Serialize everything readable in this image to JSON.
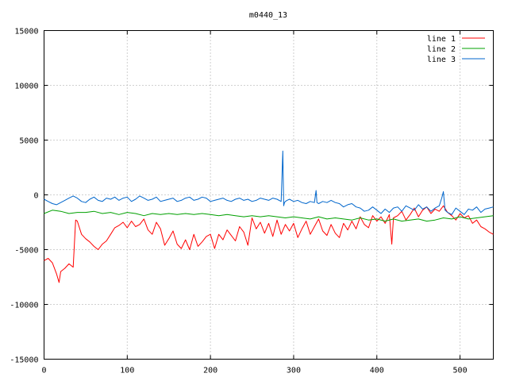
{
  "chart_data": {
    "type": "line",
    "title": "m0440_13",
    "xlabel": "",
    "ylabel": "",
    "xlim": [
      0,
      540
    ],
    "ylim": [
      -15000,
      15000
    ],
    "x_ticks": [
      0,
      100,
      200,
      300,
      400,
      500
    ],
    "y_ticks": [
      -15000,
      -10000,
      -5000,
      0,
      5000,
      10000,
      15000
    ],
    "grid": true,
    "legend_position": "top-right",
    "series": [
      {
        "name": "line 1",
        "color": "#ff0000",
        "x": [
          0,
          5,
          10,
          15,
          18,
          20,
          25,
          30,
          35,
          38,
          40,
          45,
          50,
          55,
          60,
          65,
          70,
          75,
          80,
          85,
          90,
          95,
          100,
          105,
          110,
          115,
          120,
          125,
          130,
          135,
          140,
          145,
          150,
          155,
          160,
          165,
          170,
          175,
          180,
          185,
          190,
          195,
          200,
          205,
          210,
          215,
          220,
          225,
          230,
          235,
          240,
          245,
          250,
          255,
          260,
          265,
          270,
          275,
          280,
          285,
          290,
          295,
          300,
          305,
          310,
          315,
          320,
          325,
          330,
          335,
          340,
          345,
          350,
          355,
          360,
          365,
          370,
          375,
          380,
          385,
          390,
          395,
          400,
          405,
          410,
          415,
          418,
          420,
          425,
          430,
          435,
          440,
          445,
          450,
          455,
          460,
          465,
          470,
          475,
          480,
          485,
          490,
          495,
          500,
          505,
          510,
          515,
          520,
          525,
          530,
          535,
          540
        ],
        "y": [
          -6000,
          -5800,
          -6200,
          -7200,
          -8000,
          -7000,
          -6700,
          -6300,
          -6600,
          -2300,
          -2400,
          -3600,
          -4000,
          -4300,
          -4700,
          -5000,
          -4500,
          -4200,
          -3600,
          -3000,
          -2800,
          -2500,
          -3000,
          -2400,
          -2900,
          -2700,
          -2200,
          -3200,
          -3600,
          -2500,
          -3100,
          -4600,
          -4000,
          -3300,
          -4500,
          -4900,
          -4100,
          -5000,
          -3600,
          -4700,
          -4300,
          -3800,
          -3600,
          -4900,
          -3600,
          -4100,
          -3200,
          -3700,
          -4200,
          -2900,
          -3400,
          -4600,
          -2100,
          -3100,
          -2500,
          -3500,
          -2600,
          -3800,
          -2300,
          -3600,
          -2700,
          -3300,
          -2600,
          -3900,
          -3100,
          -2400,
          -3600,
          -2900,
          -2200,
          -3300,
          -3700,
          -2700,
          -3500,
          -3900,
          -2600,
          -3200,
          -2400,
          -3100,
          -2000,
          -2700,
          -3000,
          -1900,
          -2400,
          -2000,
          -2600,
          -1800,
          -4500,
          -2100,
          -1900,
          -1500,
          -2300,
          -1800,
          -1200,
          -2000,
          -1400,
          -1100,
          -1700,
          -1300,
          -1500,
          -1000,
          -1600,
          -1900,
          -2300,
          -1700,
          -2100,
          -1900,
          -2600,
          -2300,
          -2900,
          -3100,
          -3400,
          -3600
        ]
      },
      {
        "name": "line 2",
        "color": "#00a000",
        "x": [
          0,
          10,
          20,
          30,
          40,
          50,
          60,
          70,
          80,
          90,
          100,
          110,
          120,
          130,
          140,
          150,
          160,
          170,
          180,
          190,
          200,
          210,
          220,
          230,
          240,
          250,
          260,
          270,
          280,
          290,
          300,
          310,
          320,
          330,
          340,
          350,
          360,
          370,
          380,
          390,
          400,
          410,
          420,
          430,
          440,
          450,
          460,
          470,
          480,
          490,
          500,
          510,
          520,
          530,
          540
        ],
        "y": [
          -1700,
          -1400,
          -1500,
          -1700,
          -1600,
          -1600,
          -1500,
          -1700,
          -1600,
          -1800,
          -1600,
          -1700,
          -1900,
          -1700,
          -1800,
          -1700,
          -1800,
          -1700,
          -1800,
          -1700,
          -1800,
          -1900,
          -1800,
          -1900,
          -2000,
          -1900,
          -2000,
          -1900,
          -2000,
          -2100,
          -2000,
          -2100,
          -2200,
          -2000,
          -2200,
          -2100,
          -2200,
          -2300,
          -2100,
          -2300,
          -2200,
          -2400,
          -2200,
          -2400,
          -2300,
          -2200,
          -2400,
          -2300,
          -2100,
          -2200,
          -2000,
          -2200,
          -2100,
          -2000,
          -1900
        ]
      },
      {
        "name": "line 3",
        "color": "#0066cc",
        "x": [
          0,
          5,
          10,
          15,
          20,
          25,
          30,
          35,
          40,
          45,
          50,
          55,
          60,
          65,
          70,
          75,
          80,
          85,
          90,
          95,
          100,
          105,
          110,
          115,
          120,
          125,
          130,
          135,
          140,
          145,
          150,
          155,
          160,
          165,
          170,
          175,
          180,
          185,
          190,
          195,
          200,
          205,
          210,
          215,
          220,
          225,
          230,
          235,
          240,
          245,
          250,
          255,
          260,
          265,
          270,
          275,
          280,
          285,
          287,
          288,
          289,
          290,
          292,
          295,
          300,
          305,
          310,
          315,
          320,
          325,
          327,
          328,
          330,
          335,
          340,
          345,
          350,
          355,
          360,
          365,
          370,
          375,
          380,
          385,
          390,
          395,
          400,
          405,
          410,
          415,
          420,
          425,
          430,
          435,
          440,
          445,
          450,
          455,
          460,
          465,
          470,
          475,
          478,
          480,
          482,
          485,
          490,
          495,
          500,
          505,
          510,
          515,
          520,
          525,
          530,
          535,
          540
        ],
        "y": [
          -400,
          -600,
          -800,
          -900,
          -700,
          -500,
          -300,
          -100,
          -300,
          -600,
          -700,
          -400,
          -200,
          -500,
          -600,
          -300,
          -400,
          -200,
          -500,
          -300,
          -200,
          -600,
          -400,
          -100,
          -300,
          -500,
          -400,
          -200,
          -600,
          -500,
          -400,
          -300,
          -600,
          -500,
          -300,
          -200,
          -500,
          -400,
          -200,
          -300,
          -600,
          -500,
          -400,
          -300,
          -500,
          -600,
          -400,
          -300,
          -500,
          -400,
          -600,
          -500,
          -300,
          -400,
          -500,
          -300,
          -400,
          -600,
          4000,
          -1000,
          -700,
          -600,
          -500,
          -400,
          -600,
          -500,
          -700,
          -800,
          -600,
          -700,
          400,
          -700,
          -800,
          -600,
          -700,
          -500,
          -700,
          -800,
          -1100,
          -900,
          -800,
          -1100,
          -1200,
          -1500,
          -1400,
          -1100,
          -1400,
          -1700,
          -1300,
          -1600,
          -1200,
          -1100,
          -1500,
          -1000,
          -1200,
          -1400,
          -900,
          -1300,
          -1100,
          -1500,
          -1200,
          -1000,
          -300,
          300,
          -1400,
          -1600,
          -1800,
          -1200,
          -1500,
          -1800,
          -1300,
          -1400,
          -1100,
          -1600,
          -1300,
          -1200,
          -1100
        ]
      }
    ]
  }
}
